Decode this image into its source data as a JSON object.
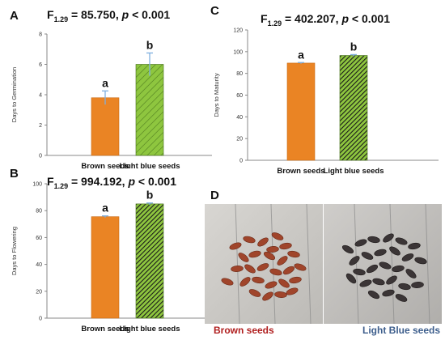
{
  "chart_data": [
    {
      "type": "bar",
      "panel": "A",
      "stat": {
        "prefix": "F",
        "sub": "1.29",
        "value": " = 85.750, ",
        "p": "p",
        "tail": " < 0.001"
      },
      "ylabel": "Days to Germination",
      "categories": [
        "Brown seeds",
        "Light blue seeds"
      ],
      "values": [
        3.8,
        6.0
      ],
      "errors": [
        0.45,
        0.75
      ],
      "letters": [
        "a",
        "b"
      ],
      "ylim": [
        0,
        8
      ],
      "yticks": [
        0,
        2,
        4,
        6,
        8
      ]
    },
    {
      "type": "bar",
      "panel": "B",
      "stat": {
        "prefix": "F",
        "sub": "1.29",
        "value": " = 994.192, ",
        "p": "p",
        "tail": " < 0.001"
      },
      "ylabel": "Days to Flowering",
      "categories": [
        "Brown seeds",
        "Light blue seeds"
      ],
      "values": [
        75.5,
        85.0
      ],
      "errors": [
        0.6,
        0.7
      ],
      "letters": [
        "a",
        "b"
      ],
      "ylim": [
        0,
        100
      ],
      "yticks": [
        0,
        20,
        40,
        60,
        80,
        100
      ]
    },
    {
      "type": "bar",
      "panel": "C",
      "stat": {
        "prefix": "F",
        "sub": "1.29",
        "value": " = 402.207, ",
        "p": "p",
        "tail": " < 0.001"
      },
      "ylabel": "Days to Maturity",
      "categories": [
        "Brown seeds",
        "Light blue seeds"
      ],
      "values": [
        89.5,
        96.5
      ],
      "errors": [
        0.5,
        0.8
      ],
      "letters": [
        "a",
        "b"
      ],
      "ylim": [
        0,
        120
      ],
      "yticks": [
        0,
        20,
        40,
        60,
        80,
        100,
        120
      ]
    }
  ],
  "panel_d": {
    "letter": "D",
    "labels": [
      "Brown seeds",
      "Light Blue seeds"
    ]
  },
  "colors": {
    "brown_bar": "#ea8424",
    "green_bar": "#8ec63f",
    "error_bar": "#7fb0e0",
    "brown_label": "#b01e1e",
    "blue_label": "#3d5e8c"
  }
}
